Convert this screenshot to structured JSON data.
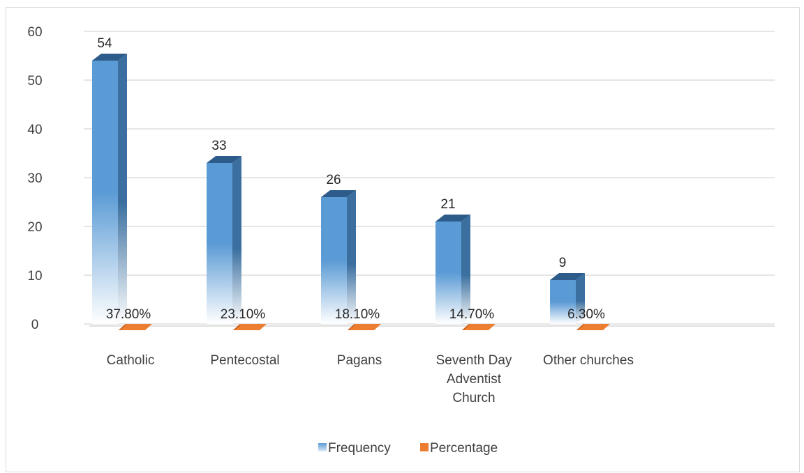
{
  "chart_data": {
    "type": "bar",
    "categories": [
      [
        "Catholic"
      ],
      [
        "Pentecostal"
      ],
      [
        "Pagans"
      ],
      [
        "Seventh Day",
        "Adventist",
        "Church"
      ],
      [
        "Other churches"
      ]
    ],
    "series": [
      {
        "name": "Frequency",
        "values": [
          54,
          33,
          26,
          21,
          9
        ],
        "labels": [
          "54",
          "33",
          "26",
          "21",
          "9"
        ],
        "color": "#5b9bd5"
      },
      {
        "name": "Percentage",
        "values": [
          0.378,
          0.231,
          0.181,
          0.147,
          0.063
        ],
        "labels": [
          "37.80%",
          "23.10%",
          "18.10%",
          "14.70%",
          "6.30%"
        ],
        "color": "#ed7d31"
      }
    ],
    "ylim": [
      0,
      60
    ],
    "yticks": [
      0,
      10,
      20,
      30,
      40,
      50,
      60
    ],
    "grid": true,
    "legend_position": "bottom"
  }
}
